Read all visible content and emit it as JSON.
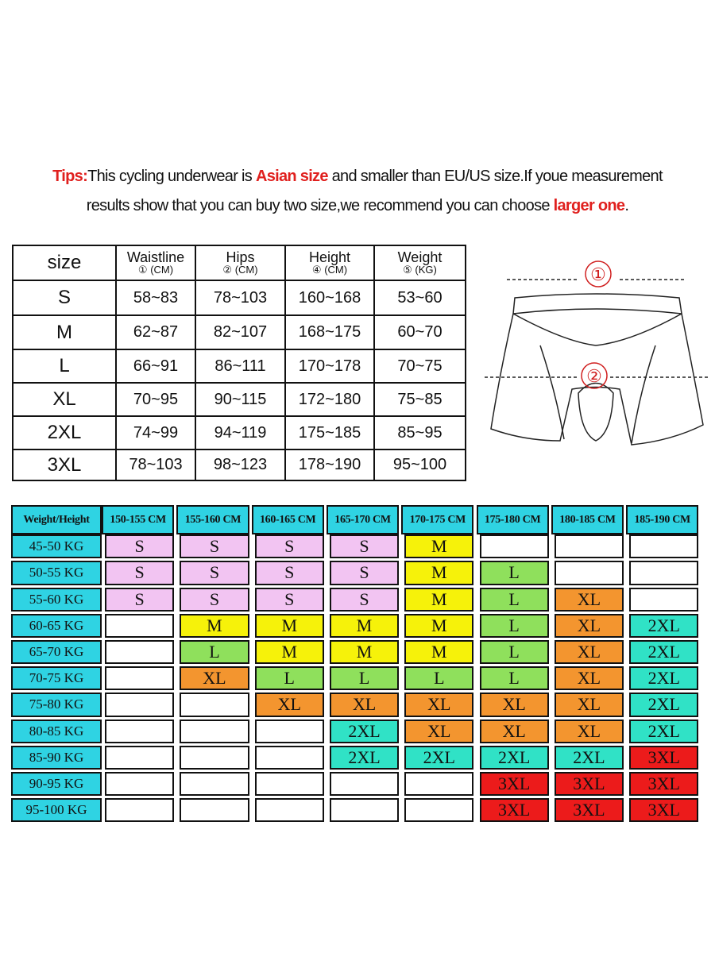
{
  "tips": {
    "lines": [
      [
        {
          "text": "Tips:",
          "color": "#e0201e",
          "bold": true
        },
        {
          "text": "This cycling underwear is ",
          "color": "#111111",
          "bold": false
        },
        {
          "text": "Asian size",
          "color": "#e0201e",
          "bold": true
        },
        {
          "text": " and smaller than EU/US size.If youe measurement",
          "color": "#111111",
          "bold": false
        }
      ],
      [
        {
          "text": "results show that you can buy two size,we recommend you can choose ",
          "color": "#111111",
          "bold": false
        },
        {
          "text": "larger one",
          "color": "#e0201e",
          "bold": true
        },
        {
          "text": ".",
          "color": "#111111",
          "bold": false
        }
      ]
    ]
  },
  "size_table": {
    "header": [
      {
        "name": "size"
      },
      {
        "name": "Waistline",
        "unit": "① (CM)"
      },
      {
        "name": "Hips",
        "unit": "② (CM)"
      },
      {
        "name": "Height",
        "unit": "④ (CM)"
      },
      {
        "name": "Weight",
        "unit": "⑤ (KG)"
      }
    ],
    "rows": [
      [
        "S",
        "58~83",
        "78~103",
        "160~168",
        "53~60"
      ],
      [
        "M",
        "62~87",
        "82~107",
        "168~175",
        "60~70"
      ],
      [
        "L",
        "66~91",
        "86~111",
        "170~178",
        "70~75"
      ],
      [
        "XL",
        "70~95",
        "90~115",
        "172~180",
        "75~85"
      ],
      [
        "2XL",
        "74~99",
        "94~119",
        "175~185",
        "85~95"
      ],
      [
        "3XL",
        "78~103",
        "98~123",
        "178~190",
        "95~100"
      ]
    ]
  },
  "diagram": {
    "labels": [
      "①",
      "②"
    ]
  },
  "fit_table": {
    "corner": "Weight/Height",
    "header_color": "#2fd3e3",
    "columns": [
      "150-155 CM",
      "155-160 CM",
      "160-165 CM",
      "165-170 CM",
      "170-175 CM",
      "175-180 CM",
      "180-185 CM",
      "185-190 CM"
    ],
    "size_colors": {
      "S": "#f2c4f2",
      "M": "#f6f20a",
      "L": "#8fe05c",
      "XL": "#f3952f",
      "2XL": "#30e2c6",
      "3XL": "#ec1b1b"
    },
    "rows": [
      {
        "label": "45-50 KG",
        "cells": [
          "S",
          "S",
          "S",
          "S",
          "M",
          null,
          null,
          null
        ]
      },
      {
        "label": "50-55 KG",
        "cells": [
          "S",
          "S",
          "S",
          "S",
          "M",
          "L",
          null,
          null
        ]
      },
      {
        "label": "55-60 KG",
        "cells": [
          "S",
          "S",
          "S",
          "S",
          "M",
          "L",
          "XL",
          null
        ]
      },
      {
        "label": "60-65 KG",
        "cells": [
          null,
          "M",
          "M",
          "M",
          "M",
          "L",
          "XL",
          "2XL"
        ]
      },
      {
        "label": "65-70 KG",
        "cells": [
          null,
          "L",
          "M",
          "M",
          "M",
          "L",
          "XL",
          "2XL"
        ]
      },
      {
        "label": "70-75 KG",
        "cells": [
          null,
          "XL",
          "L",
          "L",
          "L",
          "L",
          "XL",
          "2XL"
        ]
      },
      {
        "label": "75-80 KG",
        "cells": [
          null,
          null,
          "XL",
          "XL",
          "XL",
          "XL",
          "XL",
          "2XL"
        ]
      },
      {
        "label": "80-85 KG",
        "cells": [
          null,
          null,
          null,
          "2XL",
          "XL",
          "XL",
          "XL",
          "2XL"
        ]
      },
      {
        "label": "85-90 KG",
        "cells": [
          null,
          null,
          null,
          "2XL",
          "2XL",
          "2XL",
          "2XL",
          "3XL"
        ]
      },
      {
        "label": "90-95 KG",
        "cells": [
          null,
          null,
          null,
          null,
          null,
          "3XL",
          "3XL",
          "3XL"
        ]
      },
      {
        "label": "95-100 KG",
        "cells": [
          null,
          null,
          null,
          null,
          null,
          "3XL",
          "3XL",
          "3XL"
        ]
      }
    ]
  }
}
